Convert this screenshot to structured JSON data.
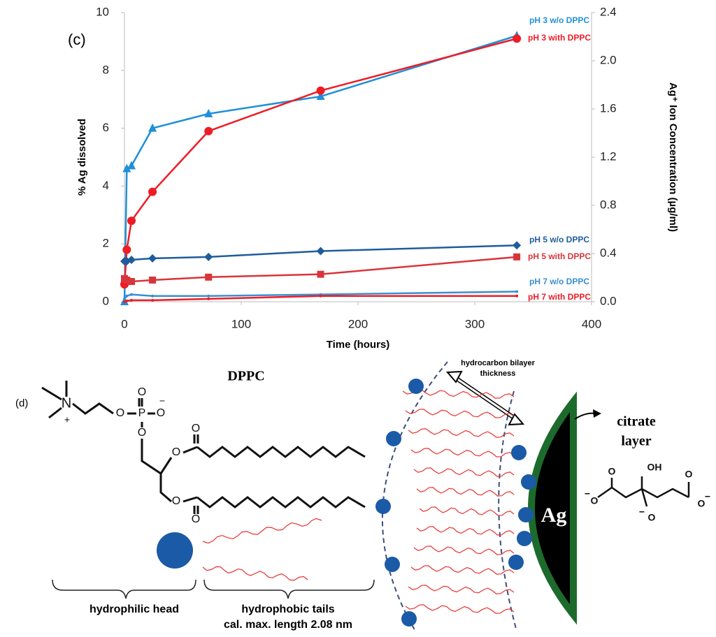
{
  "chart_data": {
    "type": "line",
    "panel_label": "(c)",
    "x_label": "Time (hours)",
    "y_label": "% Ag dissolved",
    "y2_label": "Ag⁺ Ion Concentration (µg/ml)",
    "x": [
      0,
      2,
      6,
      24,
      72,
      168,
      336
    ],
    "xlim": [
      0,
      400
    ],
    "xticks": [
      0,
      100,
      200,
      300,
      400
    ],
    "ylim": [
      0,
      10
    ],
    "yticks": [
      0,
      2,
      4,
      6,
      8,
      10
    ],
    "y2lim": [
      0,
      2.4
    ],
    "y2ticks": [
      {
        "value": 0,
        "label": "0.0"
      },
      0.4,
      0.8,
      1.2,
      1.6,
      {
        "value": 2,
        "label": "2.0"
      },
      2.4
    ],
    "grid": false,
    "series": [
      {
        "name": "pH 3 w/o DPPC",
        "color": "#1e90d8",
        "marker": "triangle",
        "values": [
          0,
          4.6,
          4.7,
          6.0,
          6.5,
          7.1,
          9.2
        ]
      },
      {
        "name": "pH 3 with DPPC",
        "color": "#ee1c25",
        "marker": "circle",
        "values": [
          0.6,
          1.8,
          2.8,
          3.8,
          5.9,
          7.3,
          9.1
        ]
      },
      {
        "name": "pH 5 w/o DPPC",
        "color": "#1f5c9e",
        "marker": "diamond",
        "values": [
          1.4,
          1.4,
          1.45,
          1.5,
          1.55,
          1.75,
          1.95
        ]
      },
      {
        "name": "pH 5 with DPPC",
        "color": "#d9343a",
        "marker": "square",
        "values": [
          0.8,
          0.75,
          0.7,
          0.75,
          0.85,
          0.95,
          1.55
        ]
      },
      {
        "name": "pH 7 w/o DPPC",
        "color": "#3a8fd0",
        "marker": "none",
        "values": [
          0.1,
          0.2,
          0.25,
          0.2,
          0.2,
          0.25,
          0.35
        ]
      },
      {
        "name": "pH 7 with DPPC",
        "color": "#ee1c25",
        "marker": "none",
        "values": [
          0,
          0.03,
          0.05,
          0.05,
          0.1,
          0.2,
          0.2
        ]
      }
    ]
  },
  "diagram": {
    "panel_label": "(d)",
    "title": "DPPC",
    "bilayer_label": [
      "hydrocarbon bilayer",
      "thickness"
    ],
    "citrate_label": [
      "citrate",
      "layer"
    ],
    "particle_label": "Ag",
    "head_label": "hydrophilic head",
    "tail_label": [
      "hydrophobic tails",
      "cal. max. length 2.08 nm"
    ],
    "dppc_atoms": [
      "N",
      "+",
      "O",
      "P",
      "O",
      "O",
      "−",
      "O",
      "O",
      "O",
      "O",
      "O"
    ],
    "citrate_atoms": [
      "O",
      "OH",
      "O",
      "O",
      "−",
      "O",
      "−",
      "O",
      "−"
    ]
  }
}
